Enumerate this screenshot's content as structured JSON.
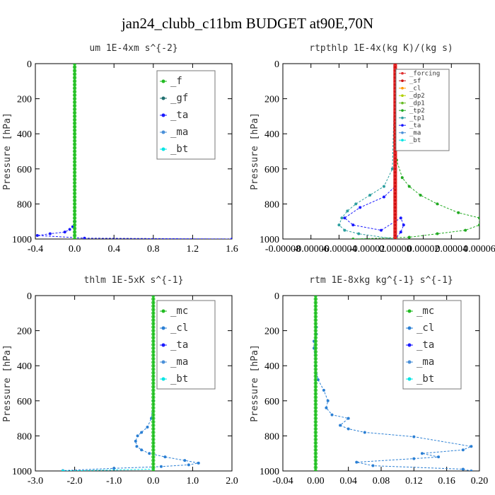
{
  "title": "jan24_clubb_c11bm  BUDGET at90E,70N",
  "chart_data": [
    {
      "type": "line",
      "title": "um  1E-4xm s^{-2}",
      "ylabel": "Pressure [hPa]",
      "xlim": [
        -0.4,
        1.6
      ],
      "ylim": [
        1000,
        0
      ],
      "xticks": [
        "-0.4",
        "0.0",
        "0.4",
        "0.8",
        "1.2",
        "1.6"
      ],
      "yticks": [
        "0",
        "200",
        "400",
        "600",
        "800",
        "1000"
      ],
      "legend_position": "top-right",
      "series": [
        {
          "name": "_f",
          "color": "#22bb22",
          "x": [
            0,
            0
          ],
          "y": [
            0,
            1000
          ]
        },
        {
          "name": "_gf",
          "color": "#1f6f6f",
          "x": [
            0,
            0
          ],
          "y": [
            0,
            1000
          ]
        },
        {
          "name": "_ta",
          "color": "#1a1aff",
          "x": [
            0,
            0,
            -0.02,
            -0.05,
            -0.1,
            -0.25,
            -0.38,
            0.1,
            1.6
          ],
          "y": [
            0,
            900,
            930,
            945,
            960,
            970,
            980,
            995,
            1000
          ]
        },
        {
          "name": "_ma",
          "color": "#4a90d9",
          "x": [
            0,
            0
          ],
          "y": [
            0,
            1000
          ]
        },
        {
          "name": "_bt",
          "color": "#00e5e5",
          "x": [
            0,
            0
          ],
          "y": [
            0,
            1000
          ]
        }
      ]
    },
    {
      "type": "line",
      "title": "rtpthlp  1E-4x(kg K)/(kg s)",
      "ylabel": "Pressure [hPa]",
      "xlim": [
        -8e-05,
        6e-05
      ],
      "ylim": [
        1000,
        0
      ],
      "xticks": [
        "-0.00008",
        "-0.00006",
        "-0.00004",
        "-0.00002",
        "0.00000",
        "0.00002",
        "0.00004",
        "0.00006"
      ],
      "yticks": [
        "0",
        "200",
        "400",
        "600",
        "800",
        "1000"
      ],
      "legend_position": "top-right",
      "series": [
        {
          "name": "_forcing",
          "color": "#e03030",
          "x": [
            0,
            0
          ],
          "y": [
            0,
            1000
          ]
        },
        {
          "name": "_sf",
          "color": "#cc1111",
          "x": [
            0,
            0
          ],
          "y": [
            0,
            1000
          ]
        },
        {
          "name": "_cl",
          "color": "#ff9900",
          "x": [
            0,
            0
          ],
          "y": [
            0,
            1000
          ]
        },
        {
          "name": "_dp2",
          "color": "#b0d000",
          "x": [
            0,
            0
          ],
          "y": [
            0,
            1000
          ]
        },
        {
          "name": "_dp1",
          "color": "#66bb22",
          "x": [
            0,
            0
          ],
          "y": [
            0,
            1000
          ]
        },
        {
          "name": "_tp2",
          "color": "#22aa22",
          "x": [
            0,
            1e-06,
            5e-06,
            1e-05,
            1.8e-05,
            3e-05,
            4.5e-05,
            6e-05,
            6e-05,
            5e-05,
            3e-05,
            1e-05,
            -3e-05
          ],
          "y": [
            0,
            550,
            650,
            700,
            750,
            800,
            850,
            880,
            920,
            950,
            970,
            990,
            1000
          ]
        },
        {
          "name": "_tp1",
          "color": "#2ea0a0",
          "x": [
            0,
            -2e-06,
            -8e-06,
            -1.8e-05,
            -2.8e-05,
            -3.4e-05,
            -3.8e-05,
            -4e-05,
            -3.6e-05,
            -2.6e-05,
            0
          ],
          "y": [
            0,
            600,
            700,
            750,
            800,
            840,
            880,
            920,
            950,
            970,
            1000
          ]
        },
        {
          "name": "_ta",
          "color": "#1a1aff",
          "x": [
            0,
            0,
            -8e-06,
            -2.5e-05,
            -3.6e-05,
            -3e-05,
            -1e-05,
            4e-06,
            6e-06,
            4e-06,
            0
          ],
          "y": [
            0,
            700,
            760,
            820,
            880,
            920,
            950,
            880,
            920,
            960,
            1000
          ]
        },
        {
          "name": "_ma",
          "color": "#4a90d9",
          "x": [
            0,
            0
          ],
          "y": [
            0,
            1000
          ]
        },
        {
          "name": "_bt",
          "color": "#00e5e5",
          "x": [
            0,
            0
          ],
          "y": [
            0,
            1000
          ]
        }
      ]
    },
    {
      "type": "line",
      "title": "thlm  1E-5xK s^{-1}",
      "ylabel": "Pressure [hPa]",
      "xlim": [
        -3.0,
        2.0
      ],
      "ylim": [
        1000,
        0
      ],
      "xticks": [
        "-3.0",
        "-2.0",
        "-1.0",
        "0.0",
        "1.0",
        "2.0"
      ],
      "yticks": [
        "0",
        "200",
        "400",
        "600",
        "800",
        "1000"
      ],
      "legend_position": "top-right",
      "series": [
        {
          "name": "_mc",
          "color": "#22bb22",
          "x": [
            0,
            0
          ],
          "y": [
            0,
            1000
          ]
        },
        {
          "name": "_cl",
          "color": "#2a7fd4",
          "x": [
            0,
            0,
            -0.05,
            -0.15,
            -0.3,
            -0.4,
            -0.45,
            -0.42,
            -0.3,
            -0.1,
            0.3,
            0.8,
            1.15,
            0.9,
            0.2,
            -1.0,
            -2.3
          ],
          "y": [
            0,
            600,
            700,
            750,
            780,
            800,
            830,
            860,
            880,
            900,
            920,
            940,
            955,
            965,
            975,
            985,
            998
          ]
        },
        {
          "name": "_ta",
          "color": "#1a1aff",
          "x": [
            0,
            0
          ],
          "y": [
            0,
            1000
          ]
        },
        {
          "name": "_ma",
          "color": "#4a90d9",
          "x": [
            0,
            0
          ],
          "y": [
            0,
            1000
          ]
        },
        {
          "name": "_bt",
          "color": "#00e5e5",
          "x": [
            0,
            0,
            -2.3
          ],
          "y": [
            0,
            990,
            1000
          ]
        }
      ]
    },
    {
      "type": "line",
      "title": "rtm  1E-8xkg kg^{-1} s^{-1}",
      "ylabel": "Pressure [hPa]",
      "xlim": [
        -0.04,
        0.2
      ],
      "ylim": [
        1000,
        0
      ],
      "xticks": [
        "-0.04",
        "0.00",
        "0.04",
        "0.08",
        "0.12",
        "0.16",
        "0.20"
      ],
      "yticks": [
        "0",
        "200",
        "400",
        "600",
        "800",
        "1000"
      ],
      "legend_position": "top-right",
      "series": [
        {
          "name": "_mc",
          "color": "#22bb22",
          "x": [
            0,
            0
          ],
          "y": [
            0,
            1000
          ]
        },
        {
          "name": "_cl",
          "color": "#2a7fd4",
          "x": [
            0,
            0.001,
            0.001,
            -0.002,
            -0.002,
            0.0,
            0.003,
            0.01,
            0.015,
            0.013,
            0.02,
            0.04,
            0.03,
            0.04,
            0.06,
            0.12,
            0.19,
            0.18,
            0.13,
            0.15,
            0.12,
            0.05,
            0.07,
            0.18,
            0.19
          ],
          "y": [
            0,
            180,
            220,
            260,
            300,
            400,
            480,
            540,
            600,
            640,
            680,
            700,
            740,
            760,
            780,
            805,
            860,
            880,
            900,
            920,
            930,
            950,
            970,
            990,
            1000
          ]
        },
        {
          "name": "_ta",
          "color": "#1a1aff",
          "x": [
            0,
            0
          ],
          "y": [
            0,
            1000
          ]
        },
        {
          "name": "_ma",
          "color": "#4a90d9",
          "x": [
            0,
            0
          ],
          "y": [
            0,
            1000
          ]
        },
        {
          "name": "_bt",
          "color": "#00e5e5",
          "x": [
            0,
            0
          ],
          "y": [
            0,
            1000
          ]
        }
      ]
    }
  ]
}
